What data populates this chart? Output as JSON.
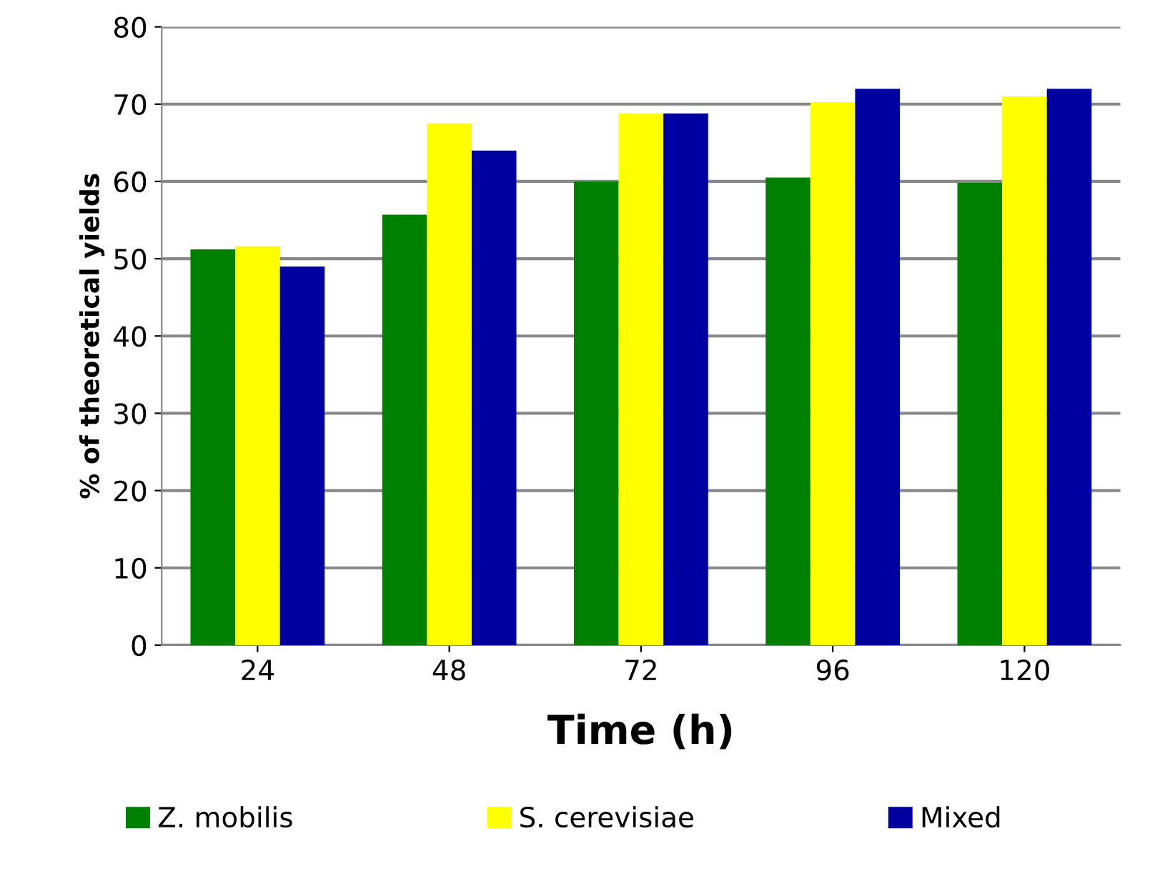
{
  "chart_data": {
    "type": "bar",
    "xlabel": "Time (h)",
    "ylabel": "% of theoretical yields",
    "categories": [
      "24",
      "48",
      "72",
      "96",
      "120"
    ],
    "series": [
      {
        "name": "Z. mobilis",
        "color": "#008000",
        "values": [
          51.2,
          55.7,
          60,
          60.5,
          59.8
        ]
      },
      {
        "name": "S. cerevisiae",
        "color": "#ffff00",
        "values": [
          51.6,
          67.5,
          68.8,
          70.2,
          71
        ]
      },
      {
        "name": "Mixed",
        "color": "#0000a0",
        "values": [
          49,
          64,
          68.8,
          72,
          72
        ]
      }
    ],
    "ylim": [
      0,
      80
    ],
    "yticks": [
      0,
      10,
      20,
      30,
      40,
      50,
      60,
      70,
      80
    ],
    "grid": "y",
    "legend": "bottom"
  }
}
